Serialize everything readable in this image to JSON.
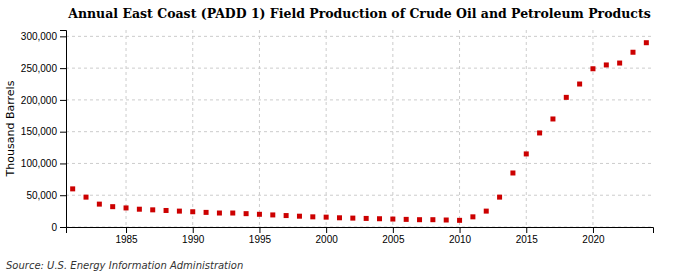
{
  "chart_data": {
    "type": "scatter",
    "title": "Annual East Coast (PADD 1) Field Production of Crude Oil and Petroleum Products",
    "ylabel": "Thousand Barrels",
    "annotations": [
      "Source: U.S. Energy Information Administration"
    ],
    "color": "#cc0000",
    "marker": "square",
    "grid": true,
    "x": [
      1981,
      1982,
      1983,
      1984,
      1985,
      1986,
      1987,
      1988,
      1989,
      1990,
      1991,
      1992,
      1993,
      1994,
      1995,
      1996,
      1997,
      1998,
      1999,
      2000,
      2001,
      2002,
      2003,
      2004,
      2005,
      2006,
      2007,
      2008,
      2009,
      2010,
      2011,
      2012,
      2013,
      2014,
      2015,
      2016,
      2017,
      2018,
      2019,
      2020,
      2021,
      2022,
      2023,
      2024
    ],
    "values": [
      60000,
      47000,
      36000,
      32000,
      30000,
      28000,
      27000,
      26000,
      25000,
      24000,
      23000,
      22000,
      22000,
      21000,
      20000,
      19000,
      18000,
      17000,
      16000,
      15500,
      14500,
      14000,
      13500,
      13000,
      12500,
      12000,
      11500,
      11500,
      11000,
      10500,
      16000,
      25000,
      47000,
      85000,
      115000,
      148000,
      170000,
      204000,
      225000,
      249000,
      255000,
      258000,
      275000,
      290000
    ],
    "xlim": [
      1980.5,
      2024.5
    ],
    "xticks": [
      1985,
      1990,
      1995,
      2000,
      2005,
      2010,
      2015,
      2020
    ],
    "ylim": [
      0,
      310000
    ],
    "yticks": [
      0,
      {
        "value": 50000,
        "label": "50,000"
      },
      {
        "value": 100000,
        "label": "100,000"
      },
      {
        "value": 150000,
        "label": "150,000"
      },
      {
        "value": 200000,
        "label": "200,000"
      },
      {
        "value": 250000,
        "label": "250,000"
      },
      {
        "value": 300000,
        "label": "300,000"
      }
    ]
  }
}
